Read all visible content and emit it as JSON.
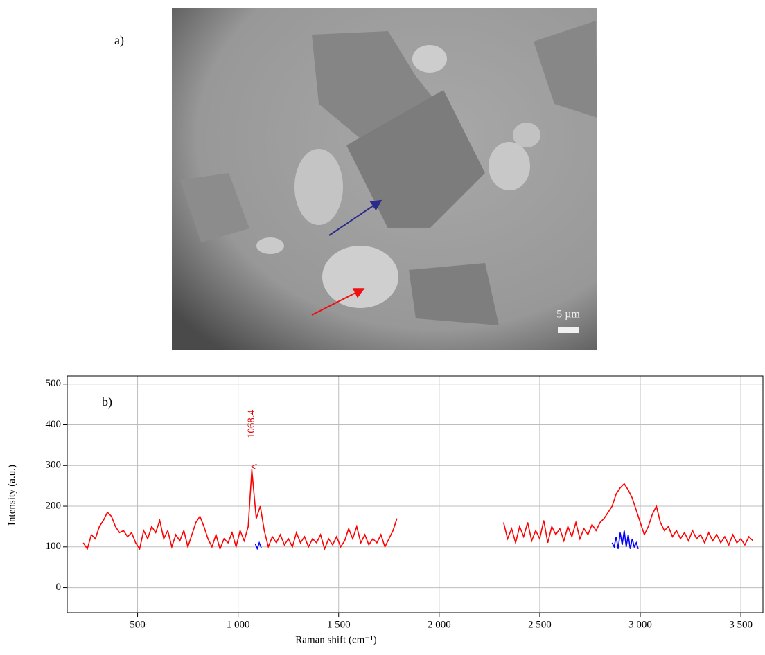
{
  "image": {
    "label": "a)",
    "scale_label": "5 µm"
  },
  "chart_data": {
    "type": "line",
    "panel_label": "b)",
    "xlabel": "Raman shift (cm⁻¹)",
    "ylabel": "Intensity (a.u.)",
    "xlim": [
      150,
      3610
    ],
    "ylim": [
      -62,
      520
    ],
    "xticks": [
      500,
      {
        "value": 1000,
        "label": "1 000"
      },
      {
        "value": 1500,
        "label": "1 500"
      },
      {
        "value": 2000,
        "label": "2 000"
      },
      {
        "value": 2500,
        "label": "2 500"
      },
      {
        "value": 3000,
        "label": "3 000"
      },
      {
        "value": 3500,
        "label": "3 500"
      }
    ],
    "yticks": [
      0,
      100,
      200,
      300,
      400,
      500
    ],
    "grid": true,
    "annotations": [
      {
        "x": 1068.4,
        "y": 290
      }
    ],
    "series": [
      {
        "color": "#ff0000",
        "x": [
          230,
          250,
          270,
          290,
          310,
          330,
          350,
          370,
          390,
          410,
          430,
          450,
          470,
          490,
          510,
          530,
          550,
          570,
          590,
          610,
          630,
          650,
          670,
          690,
          710,
          730,
          750,
          770,
          790,
          810,
          830,
          850,
          870,
          890,
          910,
          930,
          950,
          970,
          990,
          1010,
          1030,
          1050,
          1068,
          1090,
          1110,
          1130,
          1150,
          1170,
          1190,
          1210,
          1230,
          1250,
          1270,
          1290,
          1310,
          1330,
          1350,
          1370,
          1390,
          1410,
          1430,
          1450,
          1470,
          1490,
          1510,
          1530,
          1550,
          1570,
          1590,
          1610,
          1630,
          1650,
          1670,
          1690,
          1710,
          1730,
          1750,
          1770,
          1790,
          2000,
          2320,
          2340,
          2360,
          2380,
          2400,
          2420,
          2440,
          2460,
          2480,
          2500,
          2520,
          2540,
          2560,
          2580,
          2600,
          2620,
          2640,
          2660,
          2680,
          2700,
          2720,
          2740,
          2760,
          2780,
          2800,
          2820,
          2840,
          2860,
          2880,
          2900,
          2920,
          2940,
          2960,
          2980,
          3000,
          3020,
          3040,
          3060,
          3080,
          3100,
          3120,
          3140,
          3160,
          3180,
          3200,
          3220,
          3240,
          3260,
          3280,
          3300,
          3320,
          3340,
          3360,
          3380,
          3400,
          3420,
          3440,
          3460,
          3480,
          3500,
          3520,
          3540,
          3560
        ],
        "values": [
          110,
          95,
          130,
          120,
          150,
          165,
          185,
          175,
          150,
          135,
          140,
          125,
          135,
          110,
          95,
          140,
          120,
          150,
          135,
          165,
          120,
          140,
          100,
          130,
          115,
          140,
          100,
          130,
          160,
          175,
          150,
          120,
          100,
          130,
          95,
          120,
          110,
          135,
          100,
          140,
          115,
          150,
          290,
          170,
          200,
          140,
          100,
          125,
          110,
          130,
          105,
          120,
          100,
          135,
          110,
          125,
          100,
          120,
          110,
          130,
          95,
          120,
          105,
          125,
          100,
          115,
          145,
          120,
          150,
          110,
          130,
          105,
          120,
          110,
          130,
          100,
          120,
          140,
          170,
          null,
          160,
          120,
          145,
          110,
          150,
          125,
          160,
          115,
          140,
          120,
          165,
          110,
          150,
          130,
          145,
          115,
          150,
          125,
          160,
          120,
          145,
          130,
          155,
          140,
          160,
          170,
          185,
          200,
          230,
          245,
          255,
          240,
          220,
          190,
          160,
          130,
          150,
          180,
          200,
          160,
          140,
          150,
          125,
          140,
          120,
          135,
          115,
          140,
          120,
          130,
          110,
          135,
          115,
          130,
          110,
          125,
          105,
          130,
          110,
          120,
          105,
          125,
          115
        ]
      },
      {
        "color": "#0000ff",
        "x": [
          1085,
          1095,
          1105,
          1115,
          2000,
          2860,
          2870,
          2880,
          2890,
          2900,
          2910,
          2920,
          2930,
          2940,
          2950,
          2960,
          2970,
          2980,
          2990
        ],
        "values": [
          108,
          96,
          110,
          98,
          null,
          110,
          100,
          125,
          95,
          135,
          105,
          140,
          100,
          130,
          95,
          120,
          100,
          110,
          95
        ]
      }
    ]
  }
}
